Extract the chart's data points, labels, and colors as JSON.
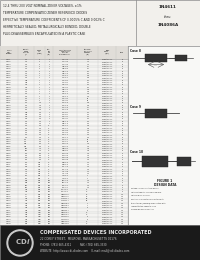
{
  "title_lines": [
    "12.4 THRU 200 VOLT NOMINAL ZENER VOLTAGES, ±1%",
    "TEMPERATURE COMPENSATED ZENER REFERENCE DIODES",
    "EFFECTIVE TEMPERATURE COEFFICIENTS OF 0.0005% C AND 0.002% C",
    "HERMETICALLY SEALED, METALLURGICALLY BONDED, DOUBLE",
    "PLUG DISASSEMBLIES ENCAPSULATED IN A PLASTIC CASE"
  ],
  "part_number": "1N4611",
  "thru": "thru",
  "alt_part": "1N4086A",
  "bg_color": "#ffffff",
  "header_bg": "#f0f0f0",
  "border_color": "#555555",
  "text_color": "#111111",
  "logo_bg": "#222222",
  "company_name": "COMPENSATED DEVICES INCORPORATED",
  "company_address": "22 COREY STREET,  MELROSE, MASSACHUSETTS 02176",
  "company_phone": "PHONE: (781) 665-4311          FAX: (781) 665-3330",
  "company_web": "WEBSITE: http://www.cdi-diodes.com    E-mail: mail@cdi-diodes.com",
  "footnote": "* JEDEC Registered Data",
  "case_labels": [
    "Case 8",
    "Case 9",
    "Case 10"
  ],
  "figure_title": "FIGURE 1",
  "design_data_title": "DESIGN DATA",
  "design_data_lines": [
    "WAFER: Silicon junction diodes",
    "LEAD MATERIAL: Copper clad wire",
    "LEAD FINISH: Tin over",
    "POLARITY: Diode to be operated with",
    "the cathode (banded) end positive with",
    "respect to the opposite lead",
    "MOUNTING POSITION: Any"
  ],
  "row_data": [
    [
      "1N4611",
      "12.4",
      "4",
      "1",
      "11.6-13.2",
      "75",
      "0.005 to 0.001",
      "8"
    ],
    [
      "1N4612",
      "13.0",
      "4",
      "1",
      "12.2-13.9",
      "72",
      "0.005 to 0.001",
      "8"
    ],
    [
      "1N4079",
      "13.0",
      "4",
      "1",
      "12.2-13.9",
      "72",
      "0.002 to 0.001",
      "8"
    ],
    [
      "1N4613",
      "14.0",
      "4",
      "1",
      "13.1-14.9",
      "67",
      "0.005 to 0.001",
      "8"
    ],
    [
      "1N4080",
      "14.0",
      "4",
      "1",
      "13.1-14.9",
      "67",
      "0.002 to 0.001",
      "8"
    ],
    [
      "1N4614",
      "15.0",
      "4",
      "1",
      "14.1-16.0",
      "62",
      "0.005 to 0.001",
      "8"
    ],
    [
      "1N4081",
      "15.0",
      "4",
      "1",
      "14.1-16.0",
      "62",
      "0.002 to 0.001",
      "8"
    ],
    [
      "1N4615",
      "16.0",
      "7",
      "1",
      "15.0-17.1",
      "58",
      "0.005 to 0.001",
      "8"
    ],
    [
      "1N4082",
      "16.0",
      "7",
      "1",
      "15.0-17.1",
      "58",
      "0.002 to 0.001",
      "8"
    ],
    [
      "1N4616",
      "17.0",
      "7",
      "1",
      "15.9-18.1",
      "54",
      "0.005 to 0.001",
      "8"
    ],
    [
      "1N4083",
      "17.0",
      "7",
      "1",
      "15.9-18.1",
      "54",
      "0.002 to 0.001",
      "8"
    ],
    [
      "1N4617",
      "18.0",
      "7",
      "1",
      "16.8-19.1",
      "52",
      "0.005 to 0.001",
      "8"
    ],
    [
      "1N4084",
      "18.0",
      "7",
      "1",
      "16.8-19.1",
      "52",
      "0.002 to 0.001",
      "8"
    ],
    [
      "1N4618",
      "19.0",
      "7",
      "1",
      "17.8-20.1",
      "48",
      "0.005 to 0.001",
      "8"
    ],
    [
      "1N4085",
      "19.0",
      "7",
      "1",
      "17.8-20.1",
      "48",
      "0.002 to 0.001",
      "8"
    ],
    [
      "1N4619",
      "20.0",
      "11",
      "1",
      "18.8-21.2",
      "46",
      "0.005 to 0.001",
      "8"
    ],
    [
      "1N4086",
      "20.0",
      "11",
      "1",
      "18.8-21.2",
      "46",
      "0.002 to 0.001",
      "8"
    ],
    [
      "1N4620",
      "22.0",
      "11",
      "1",
      "20.6-23.4",
      "41",
      "0.005 to 0.001",
      "8"
    ],
    [
      "1N4087",
      "22.0",
      "11",
      "1",
      "20.6-23.4",
      "41",
      "0.002 to 0.001",
      "8"
    ],
    [
      "1N4621",
      "24.0",
      "15",
      "1",
      "22.5-25.6",
      "38",
      "0.005 to 0.001",
      "8"
    ],
    [
      "1N4088",
      "24.0",
      "15",
      "1",
      "22.5-25.6",
      "38",
      "0.002 to 0.001",
      "8"
    ],
    [
      "1N4622",
      "25.0",
      "15",
      "1",
      "23.4-26.6",
      "37",
      "0.005 to 0.001",
      "8"
    ],
    [
      "1N4089",
      "25.0",
      "15",
      "1",
      "23.4-26.6",
      "37",
      "0.002 to 0.001",
      "8"
    ],
    [
      "1N4623",
      "27.0",
      "20",
      "1",
      "25.2-28.7",
      "34",
      "0.005 to 0.001",
      "8"
    ],
    [
      "1N4090",
      "27.0",
      "20",
      "1",
      "25.2-28.7",
      "34",
      "0.002 to 0.001",
      "8"
    ],
    [
      "1N4624",
      "28.0",
      "20",
      "1",
      "26.2-29.7",
      "32",
      "0.005 to 0.001",
      "8"
    ],
    [
      "1N4091",
      "28.0",
      "20",
      "1",
      "26.2-29.7",
      "32",
      "0.002 to 0.001",
      "8"
    ],
    [
      "1N4625",
      "30.0",
      "20",
      "1",
      "28.1-31.9",
      "30",
      "0.005 to 0.001",
      "8"
    ],
    [
      "1N4092",
      "30.0",
      "20",
      "1",
      "28.1-31.9",
      "30",
      "0.002 to 0.001",
      "8"
    ],
    [
      "1N4626",
      "33.0",
      "25",
      "0.5",
      "30.8-35.1",
      "28",
      "0.005 to 0.001",
      "8"
    ],
    [
      "1N4093",
      "33.0",
      "25",
      "0.5",
      "30.8-35.1",
      "28",
      "0.002 to 0.001",
      "8"
    ],
    [
      "1N4627",
      "36.0",
      "30",
      "0.5",
      "33.6-38.3",
      "25",
      "0.005 to 0.001",
      "8"
    ],
    [
      "1N4094",
      "36.0",
      "30",
      "0.5",
      "33.6-38.3",
      "25",
      "0.002 to 0.001",
      "8"
    ],
    [
      "1N4628",
      "39.0",
      "40",
      "0.5",
      "36.4-41.4",
      "23",
      "0.005 to 0.001",
      "8"
    ],
    [
      "1N4095",
      "39.0",
      "40",
      "0.5",
      "36.4-41.4",
      "23",
      "0.002 to 0.001",
      "8"
    ],
    [
      "1N4629",
      "43.0",
      "50",
      "0.5",
      "40.2-45.7",
      "21",
      "0.005 to 0.001",
      "8"
    ],
    [
      "1N4096",
      "43.0",
      "50",
      "0.5",
      "40.2-45.7",
      "21",
      "0.002 to 0.001",
      "8"
    ],
    [
      "1N4630",
      "47.0",
      "60",
      "0.5",
      "43.9-50.0",
      "19",
      "0.005 to 0.001",
      "8"
    ],
    [
      "1N4097",
      "47.0",
      "60",
      "0.5",
      "43.9-50.0",
      "19",
      "0.002 to 0.001",
      "8"
    ],
    [
      "1N4631",
      "51.0",
      "70",
      "0.5",
      "47.6-54.2",
      "18",
      "0.005 to 0.001",
      "8"
    ],
    [
      "1N4098",
      "51.0",
      "70",
      "0.5",
      "47.6-54.2",
      "18",
      "0.002 to 0.001",
      "8"
    ],
    [
      "1N4632",
      "56.0",
      "80",
      "0.5",
      "52.3-59.6",
      "16",
      "0.005 to 0.001",
      "9"
    ],
    [
      "1N4099",
      "56.0",
      "80",
      "0.5",
      "52.3-59.6",
      "16",
      "0.002 to 0.001",
      "9"
    ],
    [
      "1N4633",
      "60.0",
      "90",
      "0.5",
      "56.0-63.8",
      "15",
      "0.005 to 0.001",
      "9"
    ],
    [
      "1N4100",
      "60.0",
      "90",
      "0.5",
      "56.0-63.8",
      "15",
      "0.002 to 0.001",
      "9"
    ],
    [
      "1N4634",
      "62.0",
      "100",
      "0.5",
      "57.8-65.9",
      "14",
      "0.005 to 0.001",
      "9"
    ],
    [
      "1N4101",
      "62.0",
      "100",
      "0.5",
      "57.8-65.9",
      "14",
      "0.002 to 0.001",
      "9"
    ],
    [
      "1N4635",
      "68.0",
      "120",
      "0.5",
      "63.4-72.3",
      "13",
      "0.005 to 0.001",
      "9"
    ],
    [
      "1N4102",
      "68.0",
      "120",
      "0.5",
      "63.4-72.3",
      "13",
      "0.002 to 0.001",
      "9"
    ],
    [
      "1N4636",
      "75.0",
      "150",
      "0.5",
      "70.0-79.8",
      "12",
      "0.005 to 0.001",
      "9"
    ],
    [
      "1N4103",
      "75.0",
      "150",
      "0.5",
      "70.0-79.8",
      "12",
      "0.002 to 0.001",
      "9"
    ],
    [
      "1N4637",
      "82.0",
      "200",
      "0.5",
      "76.5-87.2",
      "11",
      "0.005 to 0.001",
      "9"
    ],
    [
      "1N4104",
      "82.0",
      "200",
      "0.5",
      "76.5-87.2",
      "11",
      "0.002 to 0.001",
      "9"
    ],
    [
      "1N4638",
      "87.0",
      "250",
      "0.25",
      "81.2-92.5",
      "10",
      "0.005 to 0.001",
      "9"
    ],
    [
      "1N4105",
      "87.0",
      "250",
      "0.25",
      "81.2-92.5",
      "10",
      "0.002 to 0.001",
      "9"
    ],
    [
      "1N4639",
      "91.0",
      "300",
      "0.25",
      "84.9-96.7",
      "10",
      "0.005 to 0.001",
      "9"
    ],
    [
      "1N4106",
      "91.0",
      "300",
      "0.25",
      "84.9-96.7",
      "10",
      "0.002 to 0.001",
      "9"
    ],
    [
      "1N4640",
      "100",
      "350",
      "0.25",
      "93.3-106.5",
      "9.5",
      "0.005 to 0.001",
      "9"
    ],
    [
      "1N4107",
      "100",
      "350",
      "0.25",
      "93.3-106.5",
      "9.5",
      "0.002 to 0.001",
      "9"
    ],
    [
      "1N4641",
      "110",
      "450",
      "0.25",
      "102.6-117.0",
      "8.5",
      "0.005 to 0.001",
      "10"
    ],
    [
      "1N4108",
      "110",
      "450",
      "0.25",
      "102.6-117.0",
      "8.5",
      "0.002 to 0.001",
      "10"
    ],
    [
      "1N4642",
      "120",
      "600",
      "0.25",
      "112.0-127.7",
      "7.5",
      "0.005 to 0.001",
      "10"
    ],
    [
      "1N4109",
      "120",
      "600",
      "0.25",
      "112.0-127.7",
      "7.5",
      "0.002 to 0.001",
      "10"
    ],
    [
      "1N4643",
      "130",
      "800",
      "0.25",
      "121.4-138.3",
      "7",
      "0.005 to 0.001",
      "10"
    ],
    [
      "1N4110",
      "130",
      "800",
      "0.25",
      "121.4-138.3",
      "7",
      "0.002 to 0.001",
      "10"
    ],
    [
      "1N4644",
      "150",
      "1000",
      "0.25",
      "140.0-159.7",
      "6",
      "0.005 to 0.001",
      "10"
    ],
    [
      "1N4111",
      "150",
      "1000",
      "0.25",
      "140.0-159.7",
      "6",
      "0.002 to 0.001",
      "10"
    ],
    [
      "1N4645",
      "160",
      "1200",
      "0.25",
      "149.4-170.2",
      "5.5",
      "0.005 to 0.001",
      "10"
    ],
    [
      "1N4112",
      "160",
      "1200",
      "0.25",
      "149.4-170.2",
      "5.5",
      "0.002 to 0.001",
      "10"
    ],
    [
      "1N4646",
      "180",
      "1500",
      "0.25",
      "168.1-191.6",
      "5",
      "0.005 to 0.001",
      "10"
    ],
    [
      "1N4113",
      "180",
      "1500",
      "0.25",
      "168.1-191.6",
      "5",
      "0.002 to 0.001",
      "10"
    ],
    [
      "1N4647",
      "200",
      "2000",
      "0.25",
      "186.8-212.8",
      "4.5",
      "0.005 to 0.001",
      "10"
    ],
    [
      "1N4114",
      "200",
      "2000",
      "0.25",
      "186.8-212.8",
      "4.5",
      "0.002 to 0.001",
      "10"
    ]
  ]
}
